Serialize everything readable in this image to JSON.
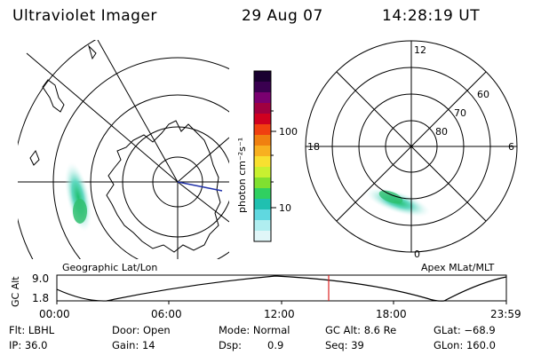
{
  "header": {
    "instrument": "Ultraviolet Imager",
    "date": "29 Aug 07",
    "time": "14:28:19 UT"
  },
  "left_panel": {
    "label": "Geographic Lat/Lon"
  },
  "right_panel": {
    "label": "Apex MLat/MLT",
    "mlt_labels": {
      "top": "12",
      "left": "18",
      "right": "6",
      "bottom": "0"
    },
    "lat_labels": [
      "60",
      "70",
      "80"
    ]
  },
  "colorbar": {
    "unit_label": "photon cm⁻²s⁻¹",
    "ticks": [
      "100",
      "10"
    ],
    "colors": [
      "#1a0030",
      "#3a0050",
      "#7a0070",
      "#a00040",
      "#d00020",
      "#f04010",
      "#f08010",
      "#f8b020",
      "#f8e030",
      "#c8f030",
      "#80e030",
      "#30d060",
      "#20c0b0",
      "#60d8e0",
      "#b0eef0",
      "#e0f6f8"
    ]
  },
  "timeline": {
    "y_axis_label": "GC Alt",
    "y_ticks": [
      "9.0",
      "1.8"
    ],
    "x_ticks": [
      "00:00",
      "06:00",
      "12:00",
      "18:00",
      "23:59"
    ],
    "marker_color": "#dd2222"
  },
  "info": {
    "flt": "Flt: LBHL",
    "ip": "IP: 36.0",
    "door": "Door: Open",
    "gain": "Gain: 14",
    "mode": "Mode: Normal",
    "dsp": "Dsp:",
    "dsp_value": "0.9",
    "gc_alt": "GC Alt: 8.6 Re",
    "seq": "Seq: 39",
    "glat": "GLat: −68.9",
    "glon": "GLon: 160.0"
  }
}
